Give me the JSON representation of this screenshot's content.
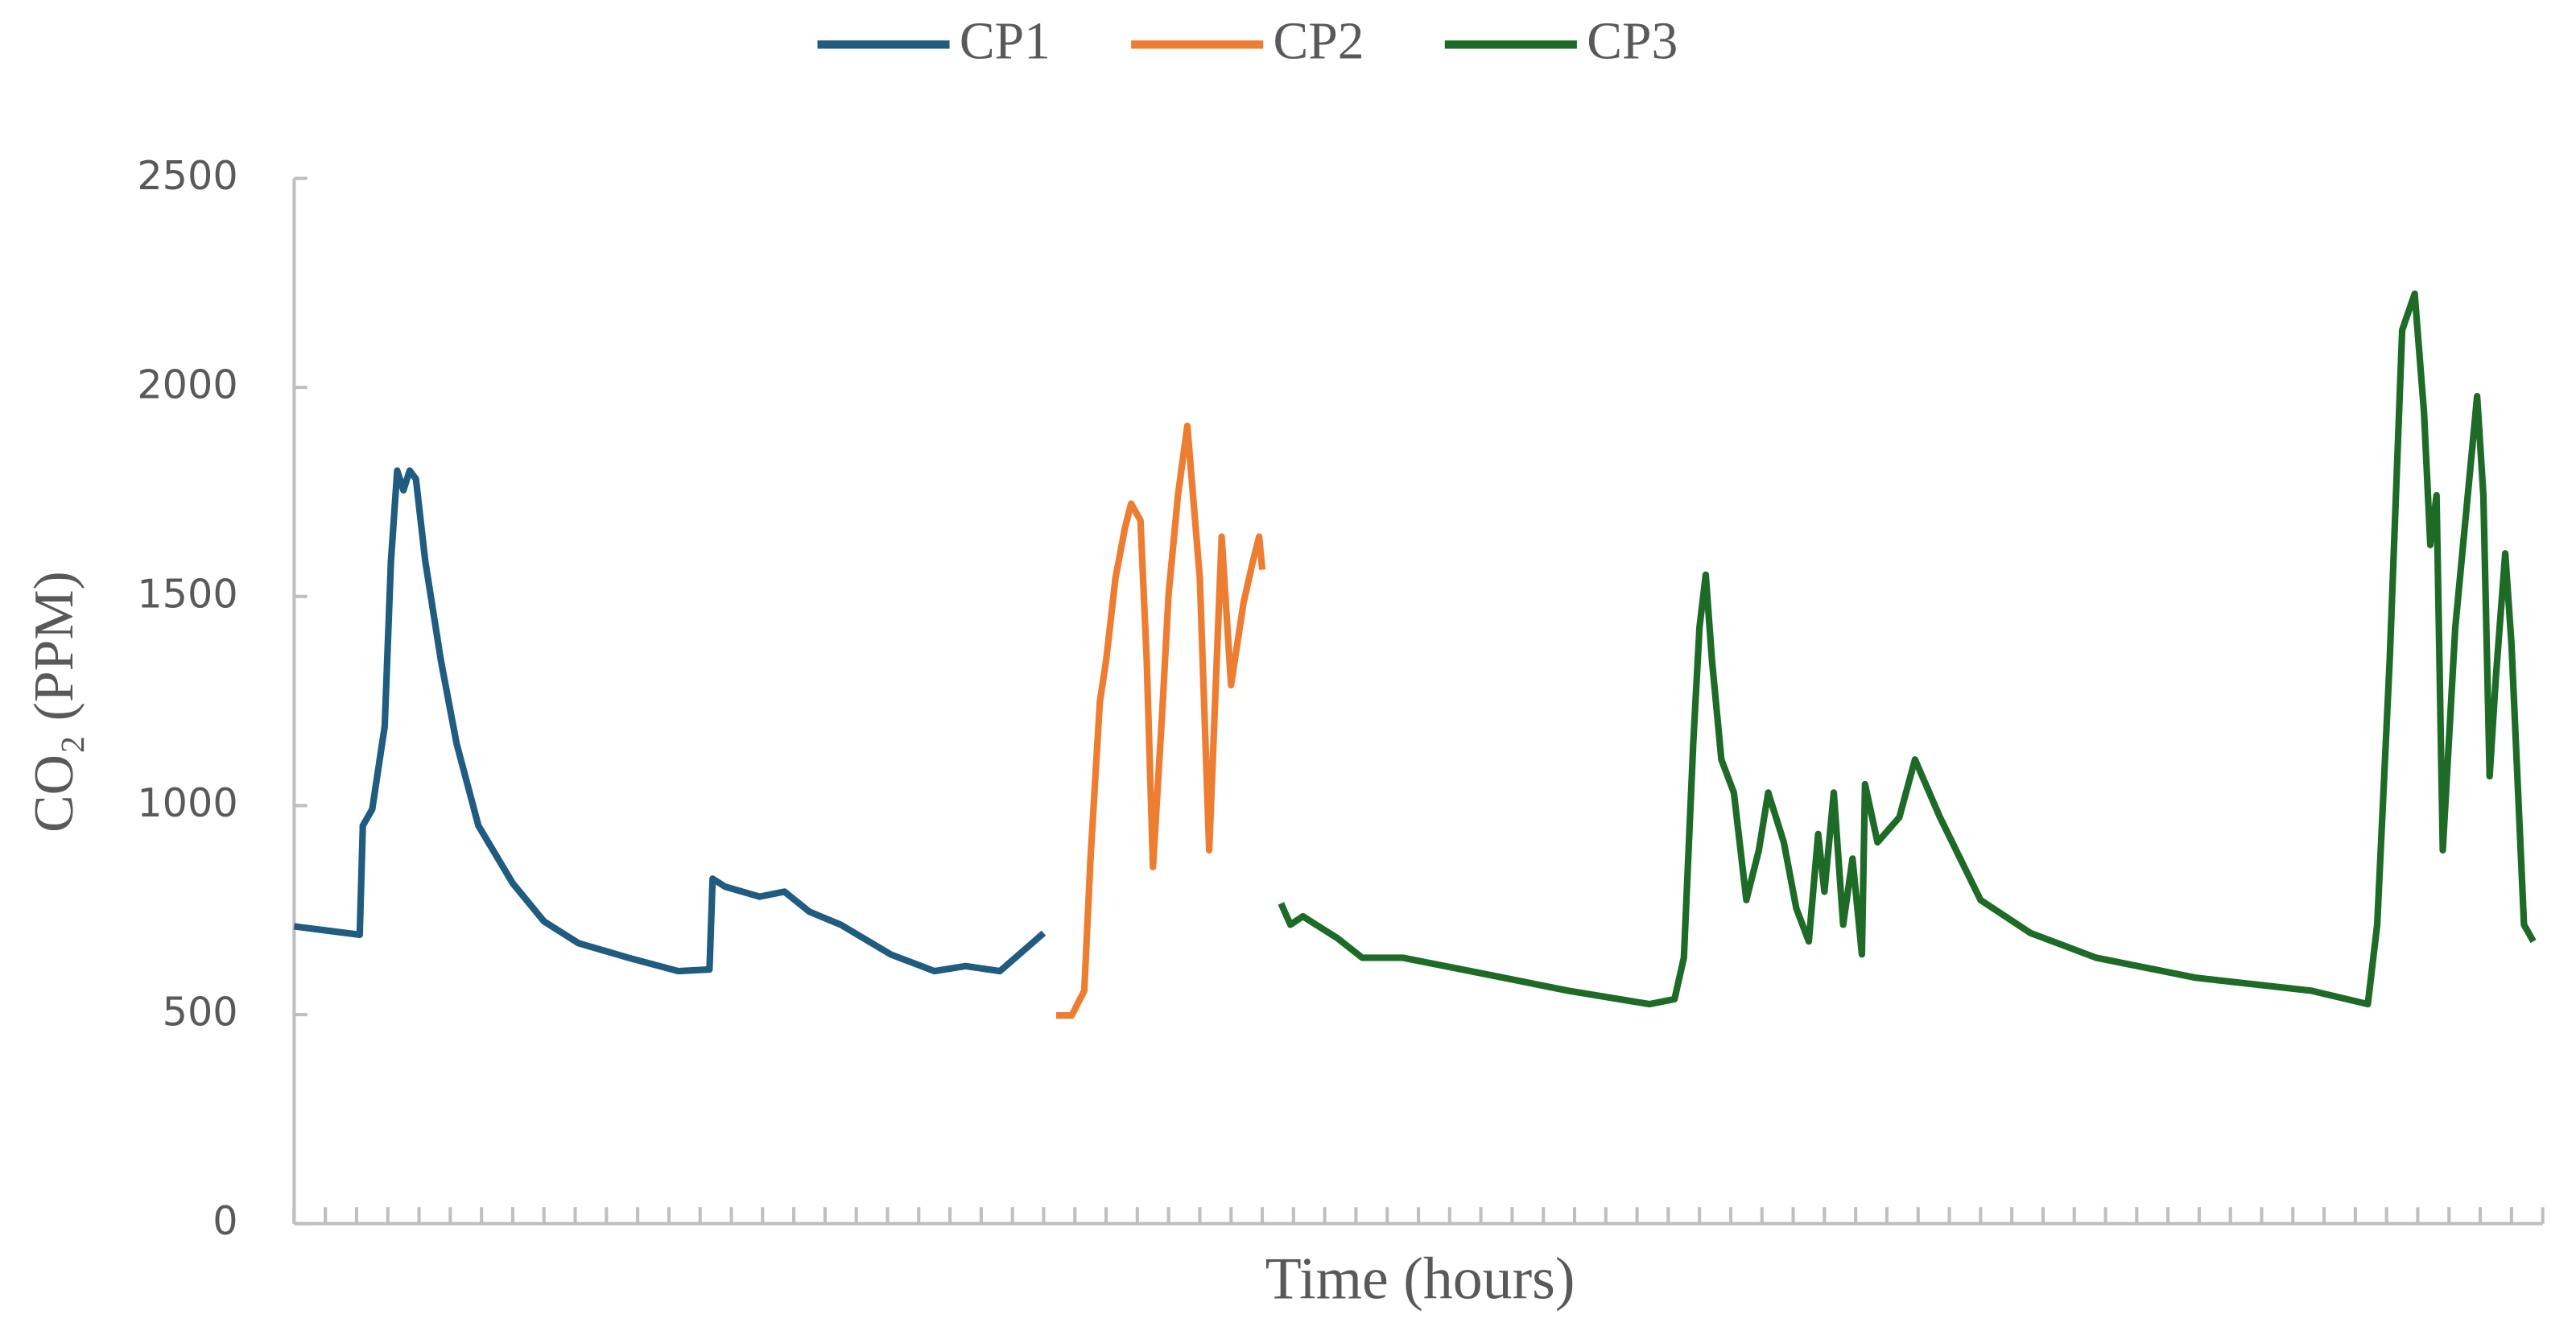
{
  "chart_data": {
    "type": "line",
    "legend": "top",
    "ylabel": "CO₂ (PPM)",
    "xlabel": "Time (hours)",
    "xlim": [
      0,
      72
    ],
    "xticks": [
      0,
      1,
      2,
      3,
      4,
      5,
      6,
      7,
      8,
      9,
      10,
      11,
      12,
      13,
      14,
      15,
      16,
      17,
      18,
      19,
      20,
      21,
      22,
      23,
      24,
      25,
      26,
      27,
      28,
      29,
      30,
      31,
      32,
      33,
      34,
      35,
      36,
      37,
      38,
      39,
      40,
      41,
      42,
      43,
      44,
      45,
      46,
      47,
      48,
      49,
      50,
      51,
      52,
      53,
      54,
      55,
      56,
      57,
      58,
      59,
      60,
      61,
      62,
      63,
      64,
      65,
      66,
      67,
      68,
      69,
      70,
      71,
      72
    ],
    "ylim": [
      0,
      2500
    ],
    "yticks": [
      0,
      500,
      1000,
      1500,
      2000,
      2500
    ],
    "series": [
      {
        "name": "CP1",
        "color": "#1f5c80",
        "x": [
          0,
          2.1,
          2.2,
          2.5,
          2.9,
          3.1,
          3.3,
          3.5,
          3.7,
          3.9,
          4.2,
          4.7,
          5.2,
          5.9,
          7.0,
          8.0,
          9.1,
          10.7,
          12.3,
          13.3,
          13.4,
          13.8,
          14.9,
          15.7,
          16.5,
          17.5,
          19.1,
          20.5,
          21.5,
          22.6,
          23.4,
          24.0
        ],
        "values": [
          711,
          691,
          952,
          991,
          1189,
          1584,
          1801,
          1754,
          1801,
          1781,
          1584,
          1347,
          1149,
          952,
          814,
          723,
          671,
          636,
          604,
          608,
          825,
          806,
          782,
          794,
          746,
          715,
          644,
          604,
          616,
          604,
          656,
          695
        ]
      },
      {
        "name": "CP2",
        "color": "#ed7d31",
        "x": [
          24.4,
          24.9,
          25.3,
          25.5,
          25.8,
          26.0,
          26.3,
          26.6,
          26.8,
          27.1,
          27.3,
          27.5,
          27.8,
          28.0,
          28.3,
          28.6,
          29.0,
          29.3,
          29.7,
          30.0,
          30.4,
          30.7,
          30.9,
          31.0
        ],
        "values": [
          498,
          498,
          557,
          873,
          1248,
          1347,
          1544,
          1663,
          1722,
          1682,
          1347,
          853,
          1228,
          1505,
          1742,
          1908,
          1544,
          893,
          1643,
          1288,
          1485,
          1584,
          1643,
          1564
        ]
      },
      {
        "name": "CP3",
        "color": "#1e6b28",
        "x": [
          31.6,
          31.9,
          32.3,
          33.4,
          34.2,
          35.5,
          38.2,
          40.8,
          43.4,
          44.2,
          44.5,
          44.8,
          45.0,
          45.2,
          45.4,
          45.7,
          46.1,
          46.5,
          46.9,
          47.2,
          47.7,
          48.1,
          48.5,
          48.8,
          49.0,
          49.3,
          49.6,
          49.9,
          50.2,
          50.3,
          50.7,
          51.4,
          51.9,
          52.7,
          54.0,
          55.6,
          57.7,
          60.9,
          64.6,
          66.4,
          66.7,
          67.1,
          67.5,
          67.9,
          68.2,
          68.4,
          68.6,
          68.8,
          69.2,
          69.5,
          69.9,
          70.1,
          70.3,
          70.5,
          70.8,
          71.0,
          71.4,
          71.7
        ],
        "values": [
          766,
          715,
          735,
          683,
          636,
          636,
          596,
          557,
          525,
          537,
          636,
          1149,
          1426,
          1552,
          1347,
          1110,
          1031,
          774,
          893,
          1031,
          912,
          754,
          675,
          932,
          794,
          1031,
          715,
          873,
          644,
          1051,
          912,
          972,
          1110,
          972,
          774,
          695,
          636,
          588,
          557,
          525,
          715,
          1347,
          2137,
          2224,
          1939,
          1623,
          1742,
          893,
          1426,
          1663,
          1979,
          1742,
          1070,
          1307,
          1603,
          1386,
          715,
          675
        ]
      }
    ]
  }
}
